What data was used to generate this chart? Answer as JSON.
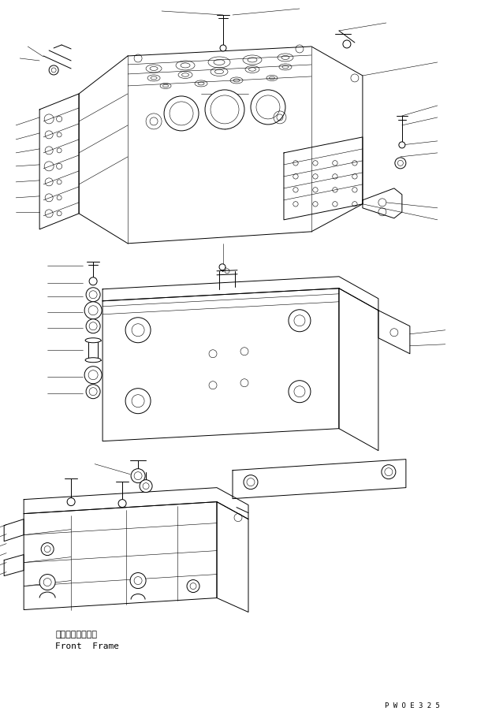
{
  "bg_color": "#ffffff",
  "line_color": "#000000",
  "fig_width": 6.05,
  "fig_height": 9.03,
  "dpi": 100,
  "label_japanese": "フロントフレーム",
  "label_english": "Front  Frame",
  "watermark": "P W O E 3 2 5",
  "lw": 0.7,
  "tlw": 0.4
}
